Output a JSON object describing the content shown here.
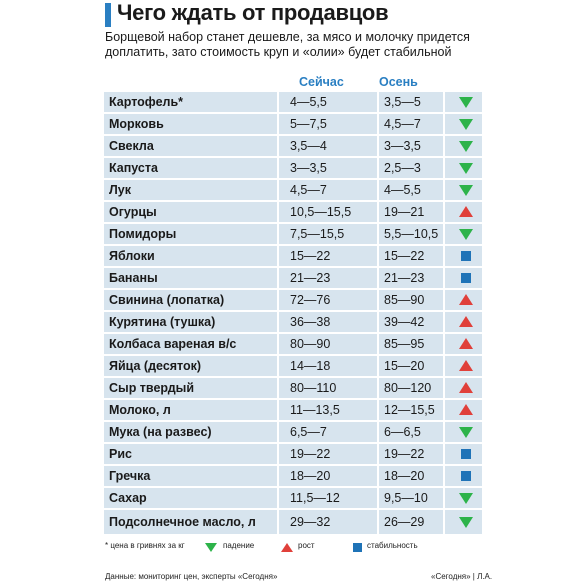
{
  "header": {
    "title": "Чего ждать от продавцов",
    "subtitle_line1": "Борщевой набор станет дешевле, за мясо и молочку придется",
    "subtitle_line2": "доплатить, зато стоимость круп и «олии» будет стабильной"
  },
  "columns": {
    "now": "Сейчас",
    "autumn": "Осень"
  },
  "rows": [
    {
      "name": "Картофель*",
      "now": "4—5,5",
      "autumn": "3,5—5",
      "trend": "down"
    },
    {
      "name": "Морковь",
      "now": "5—7,5",
      "autumn": "4,5—7",
      "trend": "down"
    },
    {
      "name": "Свекла",
      "now": "3,5—4",
      "autumn": "3—3,5",
      "trend": "down"
    },
    {
      "name": "Капуста",
      "now": "3—3,5",
      "autumn": "2,5—3",
      "trend": "down"
    },
    {
      "name": "Лук",
      "now": "4,5—7",
      "autumn": "4—5,5",
      "trend": "down"
    },
    {
      "name": "Огурцы",
      "now": "10,5—15,5",
      "autumn": "19—21",
      "trend": "up"
    },
    {
      "name": "Помидоры",
      "now": "7,5—15,5",
      "autumn": "5,5—10,5",
      "trend": "down"
    },
    {
      "name": "Яблоки",
      "now": "15—22",
      "autumn": "15—22",
      "trend": "stable"
    },
    {
      "name": "Бананы",
      "now": "21—23",
      "autumn": "21—23",
      "trend": "stable"
    },
    {
      "name": "Свинина (лопатка)",
      "now": "72—76",
      "autumn": "85—90",
      "trend": "up"
    },
    {
      "name": "Курятина (тушка)",
      "now": "36—38",
      "autumn": "39—42",
      "trend": "up"
    },
    {
      "name": "Колбаса вареная в/с",
      "now": "80—90",
      "autumn": "85—95",
      "trend": "up"
    },
    {
      "name": "Яйца (десяток)",
      "now": "14—18",
      "autumn": "15—20",
      "trend": "up"
    },
    {
      "name": "Сыр твердый",
      "now": "80—110",
      "autumn": "80—120",
      "trend": "up"
    },
    {
      "name": "Молоко, л",
      "now": "11—13,5",
      "autumn": "12—15,5",
      "trend": "up"
    },
    {
      "name": "Мука (на развес)",
      "now": "6,5—7",
      "autumn": "6—6,5",
      "trend": "down"
    },
    {
      "name": "Рис",
      "now": "19—22",
      "autumn": "19—22",
      "trend": "stable"
    },
    {
      "name": "Гречка",
      "now": "18—20",
      "autumn": "18—20",
      "trend": "stable"
    },
    {
      "name": "Сахар",
      "now": "11,5—12",
      "autumn": "9,5—10",
      "trend": "down"
    },
    {
      "name": "Подсолнечное масло, л",
      "now": "29—32",
      "autumn": "26—29",
      "trend": "down"
    }
  ],
  "legend": {
    "note": "* цена в гривнях за кг",
    "down": "падение",
    "up": "рост",
    "stable": "стабильность"
  },
  "footer": {
    "source": "Данные: мониторинг цен, эксперты «Сегодня»",
    "credit": "«Сегодня» | Л.А."
  },
  "colors": {
    "accent": "#2a7fc2",
    "row_bg": "#d7e4ee",
    "down": "#2db34a",
    "up": "#e0403a",
    "stable": "#1f73b7"
  }
}
